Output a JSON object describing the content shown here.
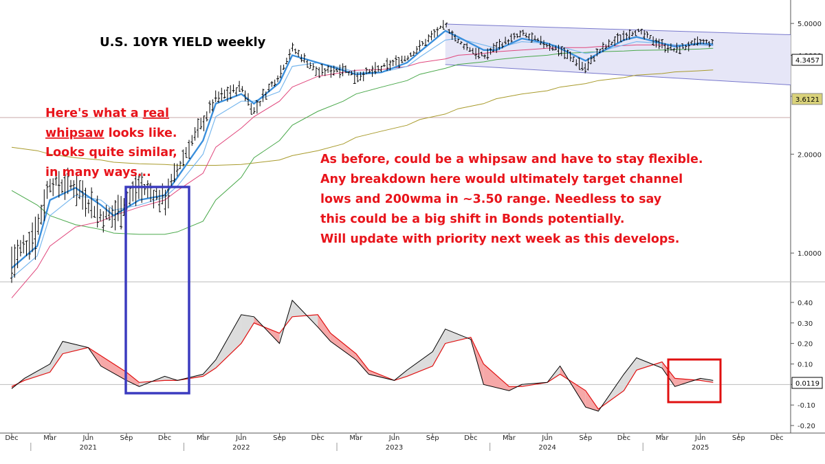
{
  "colors": {
    "price": "#000000",
    "ema_fast": "#3a8fdc",
    "ema_slow": "#79b8ee",
    "ma_mid": "#e0457b",
    "ma_100": "#49a84a",
    "ma_200": "#a89a2a",
    "channel_fill": "#e6e6f7",
    "channel_line": "#7777cc",
    "box_blue": "#3b3bbf",
    "box_red": "#e01010",
    "osc_line": "#000000",
    "signal_line": "#e01010",
    "fill_above": "#dcdcdc",
    "fill_below": "#f6a8a8",
    "annotation": "#e8141b"
  },
  "chart_data": [
    {
      "type": "line",
      "title": "U.S. 10YR YIELD weekly",
      "ylim": [
        0.9,
        5.1
      ],
      "y_ticks": [
        "5.0000",
        "4.0000",
        "3.0000",
        "2.0000",
        "1.0000"
      ],
      "x_ticks": [
        "Dec",
        "Mar",
        "Jun",
        "Sep",
        "Dec",
        "Mar",
        "Jun",
        "Sep",
        "Dec",
        "Mar",
        "Jun",
        "Sep",
        "Dec",
        "Mar",
        "Jun",
        "Sep",
        "Dec",
        "Mar",
        "Jun",
        "Sep",
        "Dec"
      ],
      "years": [
        "2021",
        "2022",
        "2023",
        "2024",
        "2025"
      ],
      "last_value_label": "4.3457",
      "ma200_value_label": "3.6121",
      "x": [
        "2020-12",
        "2021-02",
        "2021-03",
        "2021-05",
        "2021-07",
        "2021-08",
        "2021-10",
        "2021-12",
        "2022-01",
        "2022-03",
        "2022-04",
        "2022-06",
        "2022-07",
        "2022-09",
        "2022-10",
        "2022-12",
        "2023-02",
        "2023-03",
        "2023-05",
        "2023-07",
        "2023-08",
        "2023-10",
        "2023-11",
        "2024-01",
        "2024-02",
        "2024-04",
        "2024-06",
        "2024-07",
        "2024-09",
        "2024-10",
        "2024-12",
        "2025-01",
        "2025-03",
        "2025-04",
        "2025-06",
        "2025-07"
      ],
      "series": [
        {
          "key": "price",
          "values": [
            0.93,
            1.18,
            1.65,
            1.6,
            1.3,
            1.3,
            1.6,
            1.45,
            1.8,
            2.5,
            2.95,
            3.2,
            2.7,
            3.5,
            4.2,
            3.55,
            3.65,
            3.45,
            3.65,
            3.95,
            4.25,
            4.95,
            4.4,
            3.95,
            4.25,
            4.65,
            4.3,
            4.15,
            3.65,
            4.1,
            4.6,
            4.75,
            4.3,
            4.15,
            4.4,
            4.35
          ]
        },
        {
          "key": "ema_fast",
          "values": [
            0.9,
            1.05,
            1.45,
            1.58,
            1.4,
            1.3,
            1.45,
            1.5,
            1.7,
            2.2,
            2.85,
            3.05,
            2.85,
            3.3,
            4.0,
            3.8,
            3.6,
            3.5,
            3.55,
            3.8,
            4.1,
            4.75,
            4.55,
            4.15,
            4.15,
            4.5,
            4.35,
            4.2,
            3.85,
            4.05,
            4.45,
            4.55,
            4.35,
            4.25,
            4.35,
            4.32
          ]
        },
        {
          "key": "ema_slow",
          "values": [
            0.84,
            0.98,
            1.3,
            1.5,
            1.45,
            1.35,
            1.4,
            1.48,
            1.6,
            2.0,
            2.6,
            2.9,
            2.9,
            3.1,
            3.7,
            3.8,
            3.65,
            3.55,
            3.55,
            3.7,
            3.95,
            4.45,
            4.5,
            4.3,
            4.2,
            4.4,
            4.35,
            4.25,
            4.05,
            4.1,
            4.3,
            4.4,
            4.35,
            4.3,
            4.3,
            4.28
          ]
        },
        {
          "key": "ma_mid",
          "values": null
        },
        {
          "key": "ma_100",
          "values": null
        },
        {
          "key": "ma_200",
          "values": null
        }
      ],
      "ma_mid_values": [
        0.73,
        0.9,
        1.05,
        1.2,
        1.25,
        1.3,
        1.38,
        1.45,
        1.55,
        1.75,
        2.1,
        2.4,
        2.6,
        2.9,
        3.2,
        3.45,
        3.55,
        3.6,
        3.62,
        3.7,
        3.8,
        3.9,
        4.0,
        4.05,
        4.1,
        4.15,
        4.2,
        4.22,
        4.22,
        4.25,
        4.28,
        4.3,
        4.3,
        4.28,
        4.3,
        4.3
      ],
      "ma_100_values": [
        1.55,
        1.4,
        1.3,
        1.22,
        1.18,
        1.15,
        1.14,
        1.14,
        1.16,
        1.25,
        1.45,
        1.7,
        1.95,
        2.2,
        2.45,
        2.7,
        2.9,
        3.05,
        3.2,
        3.35,
        3.5,
        3.65,
        3.75,
        3.82,
        3.88,
        3.95,
        4.0,
        4.05,
        4.08,
        4.1,
        4.12,
        4.14,
        4.15,
        4.16,
        4.18,
        4.2
      ],
      "ma_200_values": [
        2.1,
        2.05,
        2.0,
        1.95,
        1.92,
        1.89,
        1.87,
        1.86,
        1.85,
        1.85,
        1.85,
        1.86,
        1.88,
        1.92,
        1.98,
        2.05,
        2.15,
        2.25,
        2.35,
        2.45,
        2.55,
        2.65,
        2.75,
        2.85,
        2.95,
        3.05,
        3.12,
        3.2,
        3.28,
        3.35,
        3.42,
        3.48,
        3.52,
        3.56,
        3.59,
        3.61
      ],
      "channel": {
        "upper": [
          4.98,
          4.62
        ],
        "lower": [
          3.75,
          3.25
        ]
      }
    },
    {
      "type": "line",
      "title": "",
      "ylim": [
        -0.22,
        0.45
      ],
      "y_ticks": [
        "0.40",
        "0.30",
        "0.20",
        "0.10",
        "0.00",
        "-0.10",
        "-0.20"
      ],
      "last_value_label": "0.0119",
      "x": [
        "2020-12",
        "2021-01",
        "2021-03",
        "2021-04",
        "2021-06",
        "2021-07",
        "2021-09",
        "2021-10",
        "2021-12",
        "2022-01",
        "2022-03",
        "2022-04",
        "2022-06",
        "2022-07",
        "2022-09",
        "2022-10",
        "2022-12",
        "2023-01",
        "2023-03",
        "2023-04",
        "2023-06",
        "2023-07",
        "2023-09",
        "2023-10",
        "2023-12",
        "2024-01",
        "2024-03",
        "2024-04",
        "2024-06",
        "2024-07",
        "2024-09",
        "2024-10",
        "2024-12",
        "2025-01",
        "2025-03",
        "2025-04",
        "2025-06",
        "2025-07"
      ],
      "series": [
        {
          "key": "oscillator",
          "values": [
            -0.02,
            0.03,
            0.1,
            0.21,
            0.18,
            0.09,
            0.02,
            -0.01,
            0.04,
            0.02,
            0.05,
            0.12,
            0.34,
            0.33,
            0.2,
            0.41,
            0.28,
            0.21,
            0.12,
            0.05,
            0.02,
            0.07,
            0.16,
            0.27,
            0.22,
            0.0,
            -0.03,
            0.0,
            0.01,
            0.09,
            -0.11,
            -0.13,
            0.05,
            0.13,
            0.08,
            -0.01,
            0.03,
            0.02
          ]
        },
        {
          "key": "signal",
          "values": [
            -0.01,
            0.02,
            0.06,
            0.15,
            0.18,
            0.14,
            0.06,
            0.01,
            0.02,
            0.02,
            0.04,
            0.08,
            0.2,
            0.3,
            0.25,
            0.33,
            0.34,
            0.25,
            0.15,
            0.07,
            0.02,
            0.04,
            0.09,
            0.2,
            0.23,
            0.1,
            -0.01,
            -0.01,
            0.01,
            0.05,
            -0.03,
            -0.12,
            -0.03,
            0.07,
            0.11,
            0.03,
            0.02,
            0.01
          ]
        }
      ]
    }
  ],
  "annotations": {
    "whipsaw_lines": [
      "Here's what a ",
      "real",
      "whipsaw",
      " looks like.",
      "Looks quite similar,",
      "in many ways..."
    ],
    "main_note": [
      "As before, could be a whipsaw and have to stay flexible.",
      "Any breakdown here would ultimately target channel",
      "lows and 200wma in ~3.50 range. Needless to say",
      "this could be a big shift in Bonds potentially.",
      "Will update with priority next week as this develops."
    ]
  }
}
